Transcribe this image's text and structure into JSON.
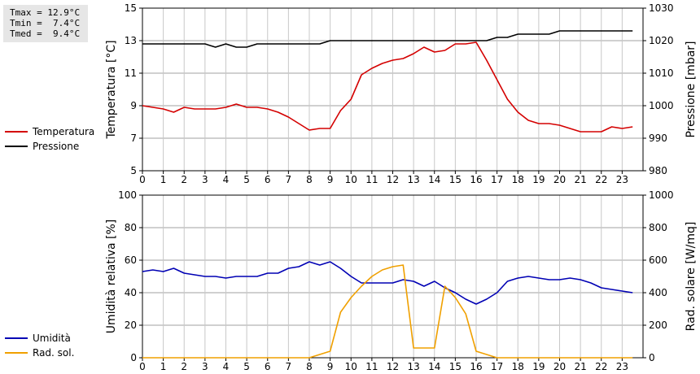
{
  "stats": {
    "tmax": "Tmax = 12.9°C",
    "tmin": "Tmin =  7.4°C",
    "tmed": "Tmed =  9.4°C"
  },
  "colors": {
    "temperature": "#d40000",
    "pressure": "#000000",
    "humidity": "#0000b4",
    "radiation": "#f0a000"
  },
  "chart_data": [
    {
      "type": "line",
      "x": [
        0,
        0.5,
        1,
        1.5,
        2,
        2.5,
        3,
        3.5,
        4,
        4.5,
        5,
        5.5,
        6,
        6.5,
        7,
        7.5,
        8,
        8.5,
        9,
        9.5,
        10,
        10.5,
        11,
        11.5,
        12,
        12.5,
        13,
        13.5,
        14,
        14.5,
        15,
        15.5,
        16,
        16.5,
        17,
        17.5,
        18,
        18.5,
        19,
        19.5,
        20,
        20.5,
        21,
        21.5,
        22,
        22.5,
        23,
        23.5
      ],
      "xticks": [
        "0",
        "1",
        "2",
        "3",
        "4",
        "5",
        "6",
        "7",
        "8",
        "9",
        "10",
        "11",
        "12",
        "13",
        "14",
        "15",
        "16",
        "17",
        "18",
        "19",
        "20",
        "21",
        "22",
        "23"
      ],
      "xlim": [
        0,
        24
      ],
      "ylabel": "Temperatura [°C]",
      "ylim": [
        5,
        15
      ],
      "yticks": [
        5,
        7,
        9,
        11,
        13,
        15
      ],
      "y2label": "Pressione [mbar]",
      "y2lim": [
        980,
        1030
      ],
      "y2ticks": [
        980,
        990,
        1000,
        1010,
        1020,
        1030
      ],
      "grid": true,
      "series": [
        {
          "name": "Temperatura",
          "axis": "left",
          "values": [
            9.0,
            8.9,
            8.8,
            8.6,
            8.9,
            8.8,
            8.8,
            8.8,
            8.9,
            9.1,
            8.9,
            8.9,
            8.8,
            8.6,
            8.3,
            7.9,
            7.5,
            7.6,
            7.6,
            8.7,
            9.4,
            10.9,
            11.3,
            11.6,
            11.8,
            11.9,
            12.2,
            12.6,
            12.3,
            12.4,
            12.8,
            12.8,
            12.9,
            11.8,
            10.6,
            9.4,
            8.6,
            8.1,
            7.9,
            7.9,
            7.8,
            7.6,
            7.4,
            7.4,
            7.4,
            7.7,
            7.6,
            7.7
          ]
        },
        {
          "name": "Pressione",
          "axis": "right",
          "values": [
            1019,
            1019,
            1019,
            1019,
            1019,
            1019,
            1019,
            1018,
            1019,
            1018,
            1018,
            1019,
            1019,
            1019,
            1019,
            1019,
            1019,
            1019,
            1020,
            1020,
            1020,
            1020,
            1020,
            1020,
            1020,
            1020,
            1020,
            1020,
            1020,
            1020,
            1020,
            1020,
            1020,
            1020,
            1021,
            1021,
            1022,
            1022,
            1022,
            1022,
            1023,
            1023,
            1023,
            1023,
            1023,
            1023,
            1023,
            1023
          ]
        }
      ],
      "legend_position": "left"
    },
    {
      "type": "line",
      "x": [
        0,
        0.5,
        1,
        1.5,
        2,
        2.5,
        3,
        3.5,
        4,
        4.5,
        5,
        5.5,
        6,
        6.5,
        7,
        7.5,
        8,
        8.5,
        9,
        9.5,
        10,
        10.5,
        11,
        11.5,
        12,
        12.5,
        13,
        13.5,
        14,
        14.5,
        15,
        15.5,
        16,
        16.5,
        17,
        17.5,
        18,
        18.5,
        19,
        19.5,
        20,
        20.5,
        21,
        21.5,
        22,
        22.5,
        23,
        23.5
      ],
      "xticks": [
        "0",
        "1",
        "2",
        "3",
        "4",
        "5",
        "6",
        "7",
        "8",
        "9",
        "10",
        "11",
        "12",
        "13",
        "14",
        "15",
        "16",
        "17",
        "18",
        "19",
        "20",
        "21",
        "22",
        "23"
      ],
      "xlim": [
        0,
        24
      ],
      "ylabel": "Umidità relativa [%]",
      "ylim": [
        0,
        100
      ],
      "yticks": [
        0,
        20,
        40,
        60,
        80,
        100
      ],
      "y2label": "Rad. solare [W/mq]",
      "y2lim": [
        0,
        1000
      ],
      "y2ticks": [
        0,
        200,
        400,
        600,
        800,
        1000
      ],
      "grid": true,
      "series": [
        {
          "name": "Umidità",
          "axis": "left",
          "values": [
            53,
            54,
            53,
            55,
            52,
            51,
            50,
            50,
            49,
            50,
            50,
            50,
            52,
            52,
            55,
            56,
            59,
            57,
            59,
            55,
            50,
            46,
            46,
            46,
            46,
            48,
            47,
            44,
            47,
            43,
            40,
            36,
            33,
            36,
            40,
            47,
            49,
            50,
            49,
            48,
            48,
            49,
            48,
            46,
            43,
            42,
            41,
            40
          ]
        },
        {
          "name": "Rad. sol.",
          "axis": "right",
          "values": [
            0,
            0,
            0,
            0,
            0,
            0,
            0,
            0,
            0,
            0,
            0,
            0,
            0,
            0,
            0,
            0,
            0,
            20,
            40,
            280,
            370,
            440,
            500,
            540,
            560,
            570,
            60,
            60,
            60,
            440,
            370,
            270,
            40,
            20,
            0,
            0,
            0,
            0,
            0,
            0,
            0,
            0,
            0,
            0,
            0,
            0,
            0,
            0
          ]
        }
      ],
      "legend_position": "left"
    }
  ]
}
